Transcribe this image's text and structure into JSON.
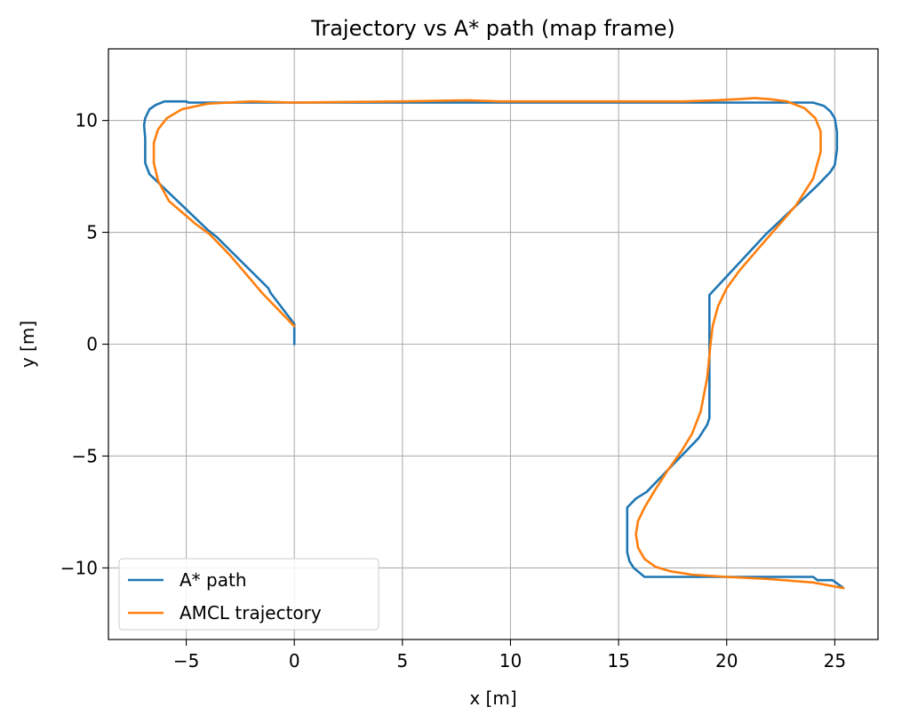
{
  "chart_data": {
    "type": "line",
    "title": "Trajectory vs A* path (map frame)",
    "xlabel": "x [m]",
    "ylabel": "y [m]",
    "xlim": [
      -8.6,
      27.0
    ],
    "ylim": [
      -13.2,
      13.2
    ],
    "xticks": [
      -5,
      0,
      5,
      10,
      15,
      20,
      25
    ],
    "yticks": [
      -10,
      -5,
      0,
      5,
      10
    ],
    "xtick_labels": [
      "−5",
      "0",
      "5",
      "10",
      "15",
      "20",
      "25"
    ],
    "ytick_labels": [
      "−10",
      "−5",
      "0",
      "5",
      "10"
    ],
    "grid": true,
    "legend_position": "lower-left",
    "series": [
      {
        "name": "A* path",
        "color": "#1f77b4",
        "x": [
          0.0,
          0.0,
          -1.1,
          -1.2,
          -3.6,
          -4.0,
          -6.7,
          -6.9,
          -6.9,
          -6.95,
          -6.9,
          -6.7,
          -6.4,
          -6.0,
          -5.0,
          -4.9,
          8.75,
          24.0,
          24.5,
          24.8,
          25.0,
          25.1,
          25.1,
          25.0,
          24.8,
          24.2,
          21.8,
          19.2,
          19.2,
          19.2,
          19.1,
          18.7,
          18.3,
          17.6,
          16.3,
          15.8,
          15.4,
          15.4,
          15.5,
          15.7,
          16.2,
          16.2,
          24.0,
          24.2,
          24.9,
          25.4
        ],
        "y": [
          0.0,
          0.9,
          2.3,
          2.5,
          4.8,
          5.1,
          7.6,
          8.1,
          9.2,
          9.8,
          10.1,
          10.5,
          10.7,
          10.85,
          10.85,
          10.8,
          10.8,
          10.8,
          10.65,
          10.4,
          10.1,
          9.5,
          8.7,
          8.0,
          7.7,
          7.1,
          4.9,
          2.2,
          1.7,
          -3.3,
          -3.6,
          -4.2,
          -4.6,
          -5.3,
          -6.6,
          -6.9,
          -7.3,
          -9.3,
          -9.7,
          -10.0,
          -10.4,
          -10.4,
          -10.4,
          -10.55,
          -10.55,
          -10.9
        ]
      },
      {
        "name": "AMCL trajectory",
        "color": "#ff7f0e",
        "x": [
          0.0,
          -0.9,
          -1.5,
          -2.2,
          -3.0,
          -3.9,
          -4.6,
          -5.2,
          -5.8,
          -6.3,
          -6.5,
          -6.5,
          -6.3,
          -5.9,
          -5.2,
          -4.0,
          -2.0,
          0.0,
          5.0,
          8.0,
          9.5,
          12.0,
          15.0,
          18.0,
          19.5,
          20.5,
          21.3,
          22.0,
          22.8,
          23.6,
          24.1,
          24.35,
          24.35,
          24.0,
          23.2,
          22.3,
          21.4,
          20.6,
          20.0,
          19.6,
          19.35,
          19.25,
          19.1,
          18.8,
          18.4,
          17.9,
          17.3,
          16.7,
          16.2,
          15.9,
          15.8,
          15.9,
          16.2,
          16.7,
          17.4,
          18.4,
          20.0,
          22.0,
          24.0,
          25.4
        ],
        "y": [
          0.8,
          1.7,
          2.3,
          3.1,
          4.0,
          4.9,
          5.4,
          5.9,
          6.4,
          7.3,
          8.1,
          9.0,
          9.6,
          10.1,
          10.5,
          10.75,
          10.85,
          10.8,
          10.85,
          10.9,
          10.85,
          10.85,
          10.85,
          10.85,
          10.9,
          10.95,
          11.0,
          10.95,
          10.85,
          10.55,
          10.1,
          9.5,
          8.6,
          7.4,
          6.2,
          5.2,
          4.2,
          3.3,
          2.5,
          1.7,
          0.8,
          0.0,
          -1.5,
          -3.0,
          -4.0,
          -4.8,
          -5.6,
          -6.5,
          -7.3,
          -7.9,
          -8.5,
          -9.1,
          -9.6,
          -9.95,
          -10.15,
          -10.3,
          -10.4,
          -10.5,
          -10.65,
          -10.9
        ]
      }
    ]
  }
}
